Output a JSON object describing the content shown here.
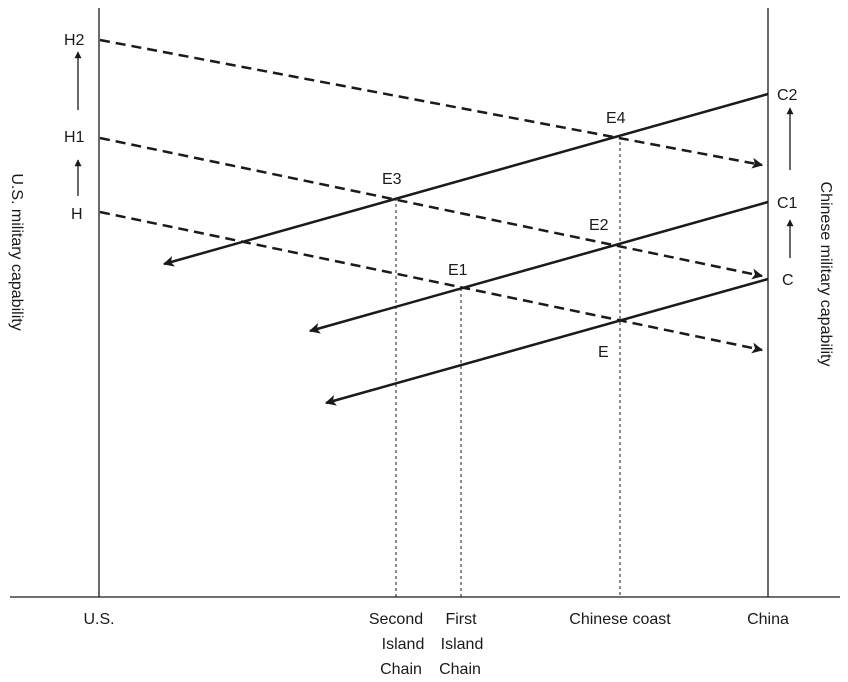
{
  "x_axis": {
    "us": "U.S.",
    "second_island_chain": [
      "Second",
      "Island",
      "Chain"
    ],
    "first_island_chain": [
      "First",
      "Island",
      "Chain"
    ],
    "chinese_coast": "Chinese coast",
    "china": "China"
  },
  "left_axis_label": "U.S. military capability",
  "right_axis_label": "Chinese military capability",
  "us_levels": {
    "h": "H",
    "h1": "H1",
    "h2": "H2"
  },
  "china_levels": {
    "c": "C",
    "c1": "C1",
    "c2": "C2"
  },
  "equilibria": {
    "e": "E",
    "e1": "E1",
    "e2": "E2",
    "e3": "E3",
    "e4": "E4"
  }
}
